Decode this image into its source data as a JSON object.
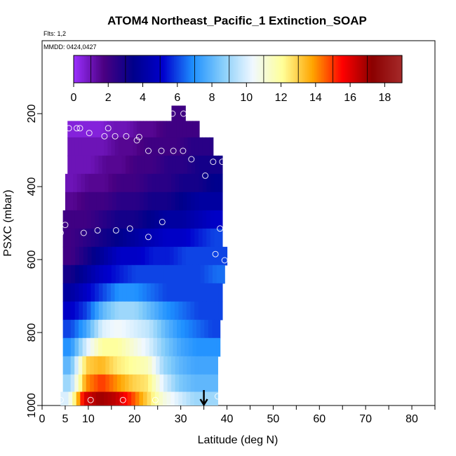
{
  "chart_data": {
    "type": "heatmap",
    "title": "ATOM4 Northeast_Pacific_1 Extinction_SOAP",
    "flights_label": "Flts: 1,2",
    "dates_label": "MMDD: 0424,0427",
    "xlabel": "Latitude (deg N)",
    "ylabel": "PSXC (mbar)",
    "xlim": [
      0,
      85
    ],
    "ylim": [
      1000,
      0
    ],
    "x_ticks": [
      0,
      5,
      10,
      20,
      30,
      40,
      50,
      60,
      70,
      80
    ],
    "y_ticks": [
      200,
      400,
      600,
      800,
      1000
    ],
    "colorbar": {
      "range": [
        0,
        19
      ],
      "ticks": [
        0,
        2,
        4,
        6,
        8,
        10,
        12,
        14,
        16,
        18
      ],
      "colors": [
        "#9b30ff",
        "#4b0082",
        "#00008b",
        "#0000cd",
        "#1e90ff",
        "#87cefa",
        "#f0f8ff",
        "#ffff99",
        "#ffa500",
        "#ff0000",
        "#8b0000",
        "#a52a2a"
      ]
    },
    "arrow_latitude": 35,
    "layers": [
      {
        "p": 200,
        "from": 28,
        "to": 31,
        "values": [
          2
        ]
      },
      {
        "p": 240,
        "from": 5.5,
        "to": 34,
        "values": [
          0.5,
          0.5,
          0.5,
          1,
          1,
          1.5,
          1.5,
          2,
          2,
          2
        ]
      },
      {
        "p": 290,
        "from": 5.5,
        "to": 37,
        "values": [
          1,
          1,
          1,
          1.5,
          1.5,
          2,
          2,
          2,
          2.5,
          2.5
        ]
      },
      {
        "p": 340,
        "from": 5.5,
        "to": 39,
        "values": [
          1,
          1,
          1.5,
          1.5,
          2,
          2,
          2.5,
          2.5,
          3,
          3
        ]
      },
      {
        "p": 390,
        "from": 5,
        "to": 39,
        "values": [
          1,
          1.5,
          1.5,
          2,
          2,
          2.5,
          2.5,
          3,
          3,
          3.5
        ]
      },
      {
        "p": 440,
        "from": 5,
        "to": 39,
        "values": [
          1.5,
          2,
          2,
          2.5,
          2.5,
          3,
          3,
          3.5,
          4,
          4
        ]
      },
      {
        "p": 490,
        "from": 4.5,
        "to": 39,
        "values": [
          2,
          2,
          2.5,
          3,
          3,
          3.5,
          4,
          4,
          4.5,
          5
        ]
      },
      {
        "p": 540,
        "from": 4.5,
        "to": 39,
        "values": [
          2,
          2.5,
          3,
          3.5,
          4,
          4.5,
          5,
          5,
          5.5,
          6
        ]
      },
      {
        "p": 590,
        "from": 4.5,
        "to": 40,
        "values": [
          2,
          3,
          4,
          5,
          5,
          5.5,
          5.5,
          6,
          6,
          6
        ]
      },
      {
        "p": 640,
        "from": 4.5,
        "to": 39.5,
        "values": [
          3,
          4,
          5,
          5.5,
          6,
          6,
          6,
          6,
          6,
          6.5
        ]
      },
      {
        "p": 690,
        "from": 4.5,
        "to": 39,
        "values": [
          4,
          5,
          6,
          7,
          7,
          6.5,
          6,
          6,
          6,
          6
        ]
      },
      {
        "p": 740,
        "from": 4.5,
        "to": 39,
        "values": [
          5,
          6,
          8,
          9,
          9,
          8,
          7,
          6.5,
          6,
          6
        ]
      },
      {
        "p": 790,
        "from": 4.5,
        "to": 38.5,
        "values": [
          6,
          7.5,
          10,
          10.5,
          10,
          9.5,
          8,
          7,
          6.5,
          6
        ]
      },
      {
        "p": 840,
        "from": 4.5,
        "to": 38.5,
        "values": [
          7,
          10,
          12,
          12,
          11,
          10,
          8.5,
          7.5,
          7,
          7
        ]
      },
      {
        "p": 890,
        "from": 4.5,
        "to": 38,
        "values": [
          8,
          13,
          13.5,
          12.5,
          12,
          11.5,
          9,
          8,
          7.5,
          7.5
        ]
      },
      {
        "p": 940,
        "from": 4.5,
        "to": 38,
        "values": [
          9,
          14,
          15,
          14,
          13,
          12.5,
          10,
          8.5,
          8,
          8
        ]
      },
      {
        "p": 985,
        "from": 4,
        "to": 38,
        "values": [
          10,
          16,
          17,
          16.5,
          15,
          13,
          11,
          10,
          9,
          9
        ]
      }
    ],
    "points": [
      {
        "lat": 5.8,
        "p": 240
      },
      {
        "lat": 7.5,
        "p": 240
      },
      {
        "lat": 8.2,
        "p": 240
      },
      {
        "lat": 10.2,
        "p": 253
      },
      {
        "lat": 13.5,
        "p": 262
      },
      {
        "lat": 14.3,
        "p": 240
      },
      {
        "lat": 15.8,
        "p": 262
      },
      {
        "lat": 18.2,
        "p": 262
      },
      {
        "lat": 20.5,
        "p": 273
      },
      {
        "lat": 21,
        "p": 264
      },
      {
        "lat": 23,
        "p": 302
      },
      {
        "lat": 25.8,
        "p": 302
      },
      {
        "lat": 28.2,
        "p": 200
      },
      {
        "lat": 28.4,
        "p": 302
      },
      {
        "lat": 30.6,
        "p": 200
      },
      {
        "lat": 30.5,
        "p": 302
      },
      {
        "lat": 32.3,
        "p": 325
      },
      {
        "lat": 35.3,
        "p": 370
      },
      {
        "lat": 37,
        "p": 332
      },
      {
        "lat": 39,
        "p": 332
      },
      {
        "lat": 5,
        "p": 505
      },
      {
        "lat": 4,
        "p": 527
      },
      {
        "lat": 9,
        "p": 527
      },
      {
        "lat": 12,
        "p": 520
      },
      {
        "lat": 16,
        "p": 520
      },
      {
        "lat": 19,
        "p": 515
      },
      {
        "lat": 23,
        "p": 538
      },
      {
        "lat": 26,
        "p": 497
      },
      {
        "lat": 37.5,
        "p": 585
      },
      {
        "lat": 38.5,
        "p": 515
      },
      {
        "lat": 39.5,
        "p": 602
      },
      {
        "lat": 4,
        "p": 985
      },
      {
        "lat": 10.5,
        "p": 985
      },
      {
        "lat": 17.5,
        "p": 985
      },
      {
        "lat": 24.5,
        "p": 985
      },
      {
        "lat": 38,
        "p": 975
      }
    ]
  }
}
